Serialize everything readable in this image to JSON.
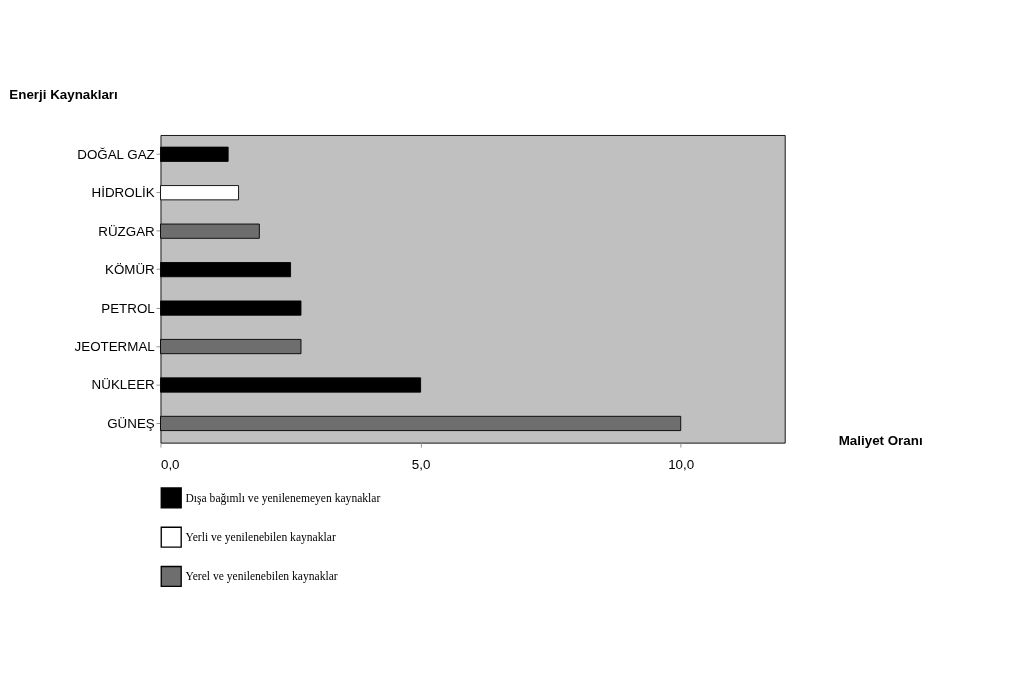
{
  "chart_data": {
    "type": "bar",
    "orientation": "horizontal",
    "xlabel": "Maliyet Oranı",
    "ylabel": "Enerji Kaynakları",
    "categories": [
      "DOĞAL GAZ",
      "HİDROLİK",
      "RÜZGAR",
      "KÖMÜR",
      "PETROL",
      "JEOTERMAL",
      "NÜKLEER",
      "GÜNEŞ"
    ],
    "series": [
      {
        "name": "Dışa bağımlı ve yenilenemeyen kaynaklar",
        "color": "#000000",
        "values": [
          1.3,
          null,
          null,
          2.5,
          2.7,
          null,
          5.0,
          null
        ]
      },
      {
        "name": "Yerli ve yenilenebilen kaynaklar",
        "color": "#ffffff",
        "values": [
          null,
          1.5,
          null,
          null,
          null,
          null,
          null,
          null
        ]
      },
      {
        "name": "Yerel ve yenilenebilen kaynaklar",
        "color": "#6e6e6e",
        "values": [
          null,
          null,
          1.9,
          null,
          null,
          2.7,
          null,
          10.0
        ]
      }
    ],
    "xlim": [
      0,
      12
    ],
    "xticks": [
      {
        "value": 0,
        "label": "0,0"
      },
      {
        "value": 5,
        "label": "5,0"
      },
      {
        "value": 10,
        "label": "10,0"
      }
    ],
    "grid": false,
    "legend": "bottom"
  }
}
